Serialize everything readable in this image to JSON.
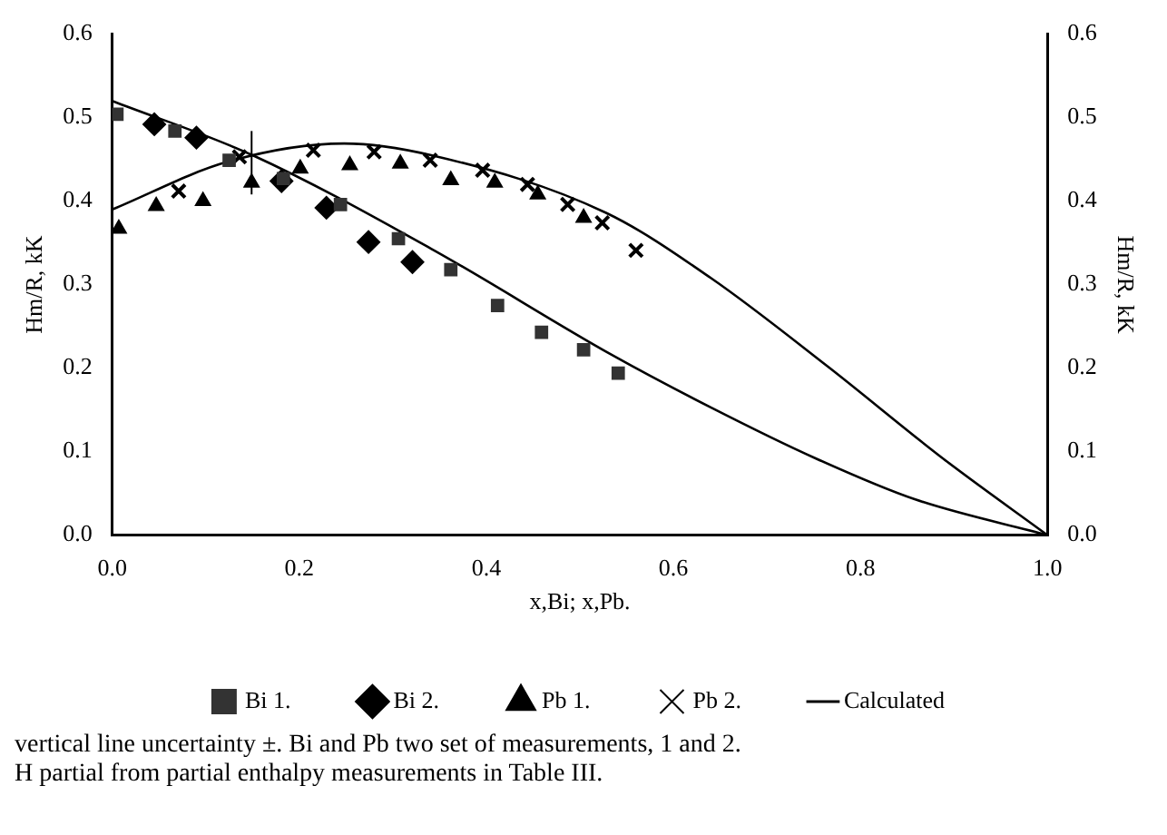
{
  "chart_data": {
    "type": "scatter",
    "xlabel": "x,Bi; x,Pb.",
    "ylabel": "Hm/R, kK",
    "y2label": "Hm/R, kK",
    "xlim": [
      0,
      1
    ],
    "xticks": [
      {
        "value": 0,
        "label": "0.0"
      },
      0.2,
      0.4,
      0.6,
      0.8,
      {
        "value": 1,
        "label": "1.0"
      }
    ],
    "ylim": [
      0,
      0.6
    ],
    "yticks": [
      {
        "value": 0,
        "label": "0.0"
      },
      0.1,
      0.2,
      0.3,
      0.4,
      0.5,
      0.6
    ],
    "y2lim": [
      0,
      0.6
    ],
    "y2ticks": [
      {
        "value": 0,
        "label": "0.0"
      },
      0.1,
      0.2,
      0.3,
      0.4,
      0.5,
      0.6
    ],
    "grid": false,
    "legend": "bottom",
    "series": [
      {
        "name": "Bi 1.",
        "color": "#333333",
        "marker": "square",
        "x": [
          0.005,
          0.067,
          0.125,
          0.183,
          0.244,
          0.306,
          0.362,
          0.412,
          0.459,
          0.504,
          0.541
        ],
        "values": [
          0.504,
          0.484,
          0.449,
          0.427,
          0.396,
          0.355,
          0.318,
          0.275,
          0.243,
          0.222,
          0.194
        ]
      },
      {
        "name": "Bi 2.",
        "color": "#000000",
        "marker": "diamond",
        "x": [
          0.045,
          0.09,
          0.181,
          0.229,
          0.274,
          0.321
        ],
        "values": [
          0.492,
          0.476,
          0.424,
          0.392,
          0.351,
          0.327
        ]
      },
      {
        "name": "Pb 1.",
        "color": "#000000",
        "marker": "triangle",
        "x": [
          0.007,
          0.047,
          0.097,
          0.149,
          0.201,
          0.254,
          0.308,
          0.362,
          0.409,
          0.455,
          0.504
        ],
        "values": [
          0.367,
          0.394,
          0.4,
          0.422,
          0.439,
          0.443,
          0.445,
          0.425,
          0.422,
          0.408,
          0.38
        ],
        "errors": [
          null,
          null,
          null,
          [
            0.408,
            0.484
          ],
          null,
          null,
          null,
          null,
          null,
          null,
          null
        ]
      },
      {
        "name": "Pb 2.",
        "color": "#000000",
        "marker": "cross",
        "x": [
          0.071,
          0.136,
          0.215,
          0.28,
          0.34,
          0.396,
          0.444,
          0.487,
          0.524,
          0.56
        ],
        "values": [
          0.412,
          0.453,
          0.461,
          0.459,
          0.449,
          0.437,
          0.42,
          0.396,
          0.374,
          0.341
        ]
      },
      {
        "type": "line",
        "name": "Calculated",
        "color": "#000000",
        "marker": "none",
        "x": [
          0,
          0.15,
          0.341,
          0.534,
          0.64,
          0.752,
          0.858,
          1
        ],
        "values": [
          0.52,
          0.455,
          0.343,
          0.216,
          0.153,
          0.092,
          0.043,
          0
        ]
      },
      {
        "type": "line",
        "color": "#000000",
        "marker": "none",
        "x": [
          0,
          0.123,
          0.248,
          0.341,
          0.528,
          0.64,
          0.765,
          0.888,
          1
        ],
        "values": [
          0.39,
          0.447,
          0.469,
          0.455,
          0.386,
          0.308,
          0.202,
          0.092,
          0
        ]
      }
    ],
    "annotations": [
      "vertical line uncertainty ±. Bi and Pb two set of measurements, 1 and 2.",
      "H partial from partial enthalpy measurements in Table III."
    ]
  }
}
